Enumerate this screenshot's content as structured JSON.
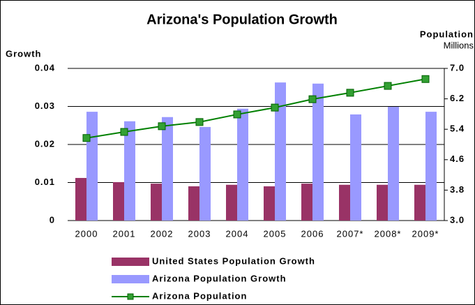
{
  "chart_data": {
    "type": "bar_line",
    "title": "Arizona's Population Growth",
    "y_label": "Growth",
    "y2_label": "Population",
    "y2_unit": "Millions",
    "categories": [
      "2000",
      "2001",
      "2002",
      "2003",
      "2004",
      "2005",
      "2006",
      "2007*",
      "2008*",
      "2009*"
    ],
    "series": [
      {
        "name": "United States Population Growth",
        "color": "#993366",
        "kind": "bar",
        "values": [
          0.0112,
          0.0101,
          0.0097,
          0.009,
          0.0094,
          0.009,
          0.0097,
          0.0094,
          0.0094,
          0.0094
        ]
      },
      {
        "name": "Arizona Population Growth",
        "color": "#9999ff",
        "kind": "bar",
        "values": [
          0.0286,
          0.0261,
          0.0272,
          0.0246,
          0.0294,
          0.0363,
          0.036,
          0.0279,
          0.0299,
          0.0286
        ]
      },
      {
        "name": "Arizona Population",
        "color": "#008000",
        "kind": "line",
        "axis": "y2",
        "values": [
          5.17,
          5.33,
          5.48,
          5.59,
          5.79,
          5.97,
          6.19,
          6.36,
          6.54,
          6.72
        ]
      }
    ],
    "ylim": [
      0,
      0.04
    ],
    "yticks": [
      0,
      0.01,
      0.02,
      0.03,
      0.04
    ],
    "y2lim": [
      3,
      7
    ],
    "y2ticks": [
      {
        "value": 3,
        "label": "3.0"
      },
      3.8,
      4.6,
      5.4,
      6.2,
      {
        "value": 7,
        "label": "7.0"
      }
    ],
    "grid": true
  }
}
